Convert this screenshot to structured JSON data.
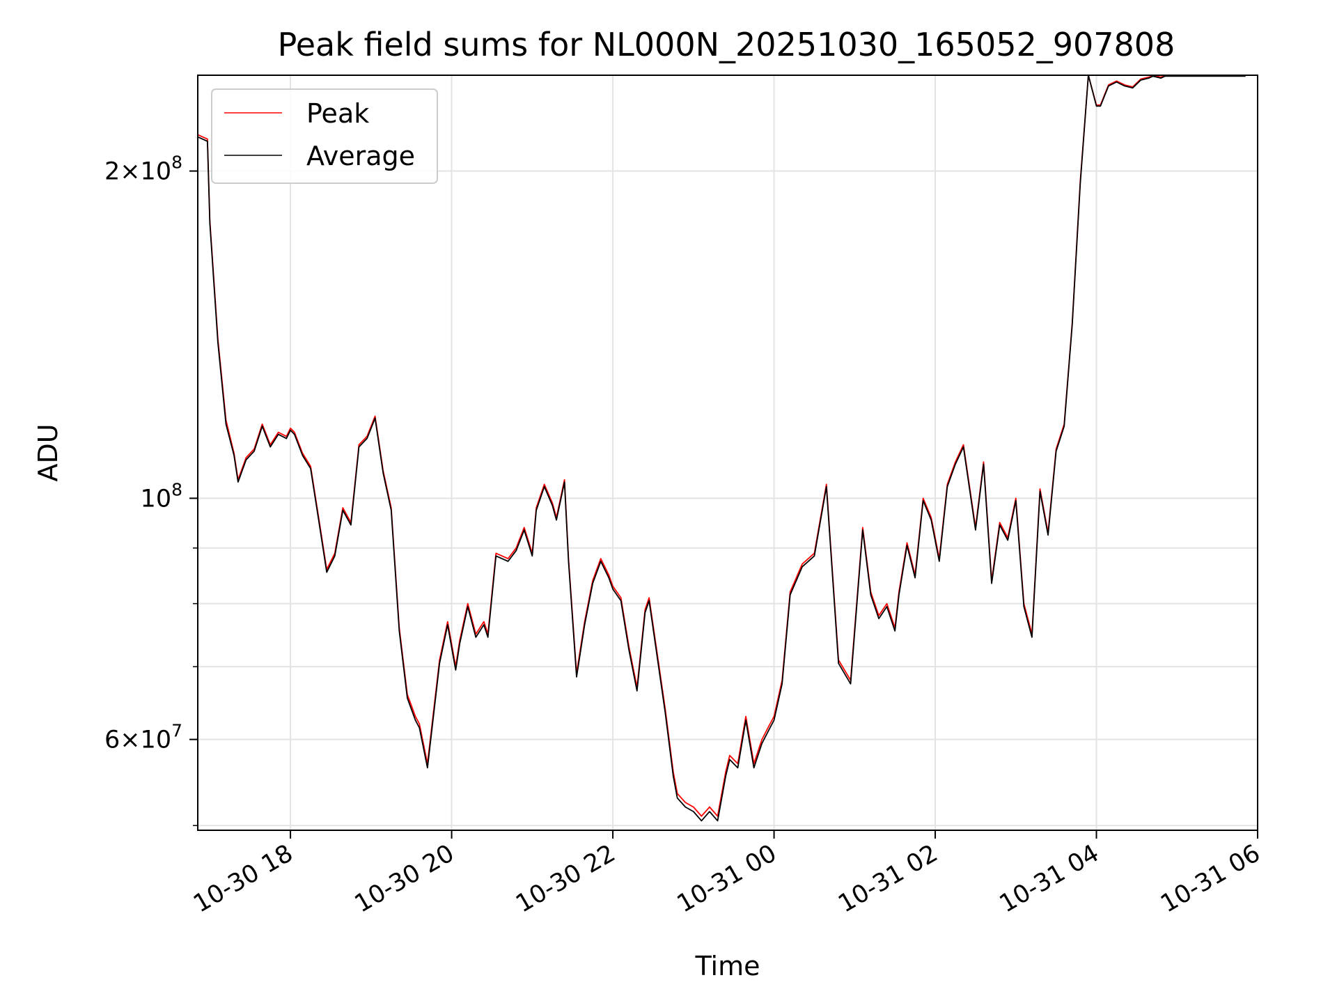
{
  "chart_data": {
    "type": "line",
    "title": "Peak field sums for NL000N_20251030_165052_907808",
    "xlabel": "Time",
    "ylabel": "ADU",
    "y_scale": "log",
    "xlim": [
      16.85,
      30.0
    ],
    "ylim": [
      49500000,
      245000000
    ],
    "grid": true,
    "legend_position": "upper-left",
    "x_ticks": [
      {
        "value": 18,
        "label": "10-30 18"
      },
      {
        "value": 20,
        "label": "10-30 20"
      },
      {
        "value": 22,
        "label": "10-30 22"
      },
      {
        "value": 24,
        "label": "10-31 00"
      },
      {
        "value": 26,
        "label": "10-31 02"
      },
      {
        "value": 28,
        "label": "10-31 04"
      },
      {
        "value": 30,
        "label": "10-31 06"
      }
    ],
    "y_major_ticks": [
      {
        "value": 60000000,
        "base": "6",
        "exp": "7"
      },
      {
        "value": 100000000,
        "base": "",
        "exp": "8"
      },
      {
        "value": 200000000,
        "base": "2",
        "exp": "8"
      }
    ],
    "y_minor_ticks": [
      50000000,
      70000000,
      80000000,
      90000000
    ],
    "series": [
      {
        "name": "Peak",
        "color": "#ff0000",
        "x": [
          16.85,
          16.97,
          17.0,
          17.1,
          17.2,
          17.3,
          17.35,
          17.45,
          17.55,
          17.65,
          17.75,
          17.85,
          17.95,
          18.0,
          18.05,
          18.15,
          18.25,
          18.35,
          18.45,
          18.55,
          18.65,
          18.75,
          18.85,
          18.95,
          19.05,
          19.15,
          19.25,
          19.35,
          19.45,
          19.55,
          19.6,
          19.7,
          19.85,
          19.95,
          20.05,
          20.1,
          20.2,
          20.3,
          20.4,
          20.45,
          20.55,
          20.7,
          20.8,
          20.9,
          21.0,
          21.05,
          21.15,
          21.25,
          21.3,
          21.4,
          21.45,
          21.55,
          21.65,
          21.75,
          21.85,
          21.95,
          22.0,
          22.1,
          22.2,
          22.3,
          22.4,
          22.45,
          22.55,
          22.65,
          22.75,
          22.8,
          22.9,
          23.0,
          23.1,
          23.2,
          23.3,
          23.4,
          23.45,
          23.55,
          23.65,
          23.75,
          23.85,
          23.95,
          24.0,
          24.1,
          24.2,
          24.35,
          24.5,
          24.65,
          24.8,
          24.95,
          25.1,
          25.2,
          25.3,
          25.4,
          25.5,
          25.55,
          25.65,
          25.75,
          25.85,
          25.95,
          26.05,
          26.15,
          26.25,
          26.35,
          26.5,
          26.6,
          26.7,
          26.8,
          26.9,
          27.0,
          27.1,
          27.2,
          27.3,
          27.4,
          27.5,
          27.6,
          27.7,
          27.8,
          27.9,
          28.0,
          28.05,
          28.15,
          28.25,
          28.35,
          28.45,
          28.55,
          28.65,
          28.7,
          28.8,
          28.85,
          28.95,
          29.0,
          29.05,
          29.1,
          29.15,
          29.2,
          29.25,
          29.35,
          29.45,
          29.55,
          29.65,
          29.75,
          29.85
        ],
        "values": [
          216000000,
          214000000,
          180000000,
          140000000,
          118000000,
          110000000,
          104000000,
          109000000,
          111000000,
          117000000,
          112000000,
          115000000,
          114000000,
          116000000,
          115000000,
          110000000,
          107000000,
          96000000,
          86000000,
          89000000,
          98000000,
          95000000,
          112000000,
          114000000,
          119000000,
          106000000,
          98000000,
          76000000,
          66000000,
          63000000,
          62000000,
          57000000,
          71000000,
          77000000,
          70000000,
          74000000,
          80000000,
          75000000,
          77000000,
          75000000,
          89000000,
          88000000,
          90000000,
          94000000,
          89000000,
          98000000,
          103000000,
          99000000,
          96000000,
          104000000,
          88000000,
          69000000,
          77000000,
          84000000,
          88000000,
          85000000,
          83000000,
          81000000,
          73000000,
          67000000,
          79000000,
          81000000,
          72000000,
          64000000,
          56000000,
          53500000,
          52500000,
          52000000,
          51000000,
          52000000,
          51000000,
          56000000,
          58000000,
          57000000,
          63000000,
          57000000,
          60000000,
          62000000,
          63000000,
          68000000,
          82000000,
          87000000,
          89000000,
          103000000,
          71000000,
          68000000,
          94000000,
          82000000,
          78000000,
          80000000,
          76000000,
          82000000,
          91000000,
          85000000,
          100000000,
          96000000,
          88000000,
          103000000,
          108000000,
          112000000,
          94000000,
          108000000,
          84000000,
          95000000,
          92000000,
          100000000,
          80000000,
          75000000,
          102000000,
          93000000,
          111000000,
          117000000,
          145000000,
          196000000,
          245000000,
          230000000,
          230000000,
          240000000,
          242000000,
          240000000,
          239000000,
          243000000,
          244000000,
          245000000,
          244000000,
          245000000,
          245000000,
          245000000,
          245000000,
          245000000,
          245000000,
          245000000,
          245000000,
          245000000,
          245000000,
          245000000,
          245000000,
          245000000,
          245000000
        ]
      },
      {
        "name": "Average",
        "color": "#000000",
        "x": [
          16.85,
          16.97,
          17.0,
          17.1,
          17.2,
          17.3,
          17.35,
          17.45,
          17.55,
          17.65,
          17.75,
          17.85,
          17.95,
          18.0,
          18.05,
          18.15,
          18.25,
          18.35,
          18.45,
          18.55,
          18.65,
          18.75,
          18.85,
          18.95,
          19.05,
          19.15,
          19.25,
          19.35,
          19.45,
          19.55,
          19.6,
          19.7,
          19.85,
          19.95,
          20.05,
          20.1,
          20.2,
          20.3,
          20.4,
          20.45,
          20.55,
          20.7,
          20.8,
          20.9,
          21.0,
          21.05,
          21.15,
          21.25,
          21.3,
          21.4,
          21.45,
          21.55,
          21.65,
          21.75,
          21.85,
          21.95,
          22.0,
          22.1,
          22.2,
          22.3,
          22.4,
          22.45,
          22.55,
          22.65,
          22.75,
          22.8,
          22.9,
          23.0,
          23.1,
          23.2,
          23.3,
          23.4,
          23.45,
          23.55,
          23.65,
          23.75,
          23.85,
          23.95,
          24.0,
          24.1,
          24.2,
          24.35,
          24.5,
          24.65,
          24.8,
          24.95,
          25.1,
          25.2,
          25.3,
          25.4,
          25.5,
          25.55,
          25.65,
          25.75,
          25.85,
          25.95,
          26.05,
          26.15,
          26.25,
          26.35,
          26.5,
          26.6,
          26.7,
          26.8,
          26.9,
          27.0,
          27.1,
          27.2,
          27.3,
          27.4,
          27.5,
          27.6,
          27.7,
          27.8,
          27.9,
          28.0,
          28.05,
          28.15,
          28.25,
          28.35,
          28.45,
          28.55,
          28.65,
          28.7,
          28.8,
          28.85,
          28.95,
          29.0,
          29.05,
          29.1,
          29.15,
          29.2,
          29.25,
          29.35,
          29.45,
          29.55,
          29.65,
          29.75,
          29.85
        ],
        "values": [
          215000000,
          213000000,
          179000000,
          139000000,
          117000000,
          109500000,
          103500000,
          108500000,
          110500000,
          116500000,
          111500000,
          114500000,
          113500000,
          115500000,
          114500000,
          109500000,
          106500000,
          95500000,
          85500000,
          88500000,
          97500000,
          94500000,
          111500000,
          113500000,
          118500000,
          105500000,
          97500000,
          75500000,
          65500000,
          62500000,
          61500000,
          56500000,
          70500000,
          76500000,
          69500000,
          73500000,
          79500000,
          74500000,
          76500000,
          74500000,
          88500000,
          87500000,
          89500000,
          93500000,
          88500000,
          97500000,
          102500000,
          98500000,
          95500000,
          103500000,
          87500000,
          68500000,
          76500000,
          83500000,
          87500000,
          84500000,
          82500000,
          80500000,
          72500000,
          66500000,
          78500000,
          80500000,
          71500000,
          63500000,
          55500000,
          53000000,
          52000000,
          51500000,
          50500000,
          51500000,
          50500000,
          55500000,
          57500000,
          56500000,
          62500000,
          56500000,
          59500000,
          61500000,
          62500000,
          67500000,
          81500000,
          86500000,
          88500000,
          102500000,
          70500000,
          67500000,
          93500000,
          81500000,
          77500000,
          79500000,
          75500000,
          81500000,
          90500000,
          84500000,
          99500000,
          95500000,
          87500000,
          102500000,
          107500000,
          111500000,
          93500000,
          107500000,
          83500000,
          94500000,
          91500000,
          99500000,
          79500000,
          74500000,
          101500000,
          92500000,
          110500000,
          116500000,
          144500000,
          195000000,
          245000000,
          229500000,
          229500000,
          239500000,
          241500000,
          239500000,
          238500000,
          242500000,
          243500000,
          244500000,
          243500000,
          244500000,
          244500000,
          244500000,
          244500000,
          244500000,
          244500000,
          244500000,
          244500000,
          244500000,
          244500000,
          244500000,
          244500000,
          244500000,
          244500000
        ]
      }
    ]
  }
}
